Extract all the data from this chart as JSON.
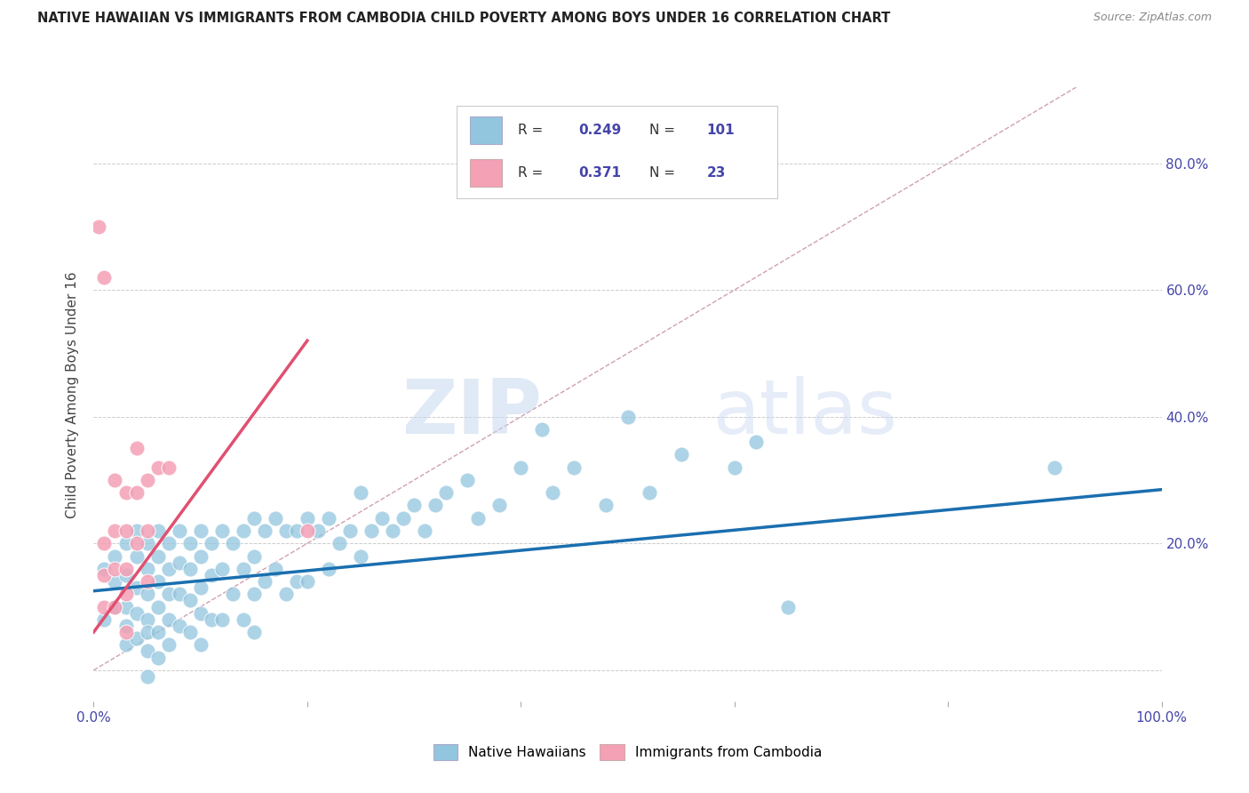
{
  "title": "NATIVE HAWAIIAN VS IMMIGRANTS FROM CAMBODIA CHILD POVERTY AMONG BOYS UNDER 16 CORRELATION CHART",
  "source": "Source: ZipAtlas.com",
  "ylabel": "Child Poverty Among Boys Under 16",
  "xlim": [
    0,
    1.0
  ],
  "ylim": [
    -0.05,
    0.92
  ],
  "yticks": [
    0.0,
    0.2,
    0.4,
    0.6,
    0.8
  ],
  "right_yticklabels": [
    "",
    "20.0%",
    "40.0%",
    "60.0%",
    "80.0%"
  ],
  "watermark_line1": "ZIP",
  "watermark_line2": "atlas",
  "legend_R1": "0.249",
  "legend_N1": "101",
  "legend_R2": "0.371",
  "legend_N2": "23",
  "color_blue": "#92c5de",
  "color_pink": "#f4a0b5",
  "line_blue": "#1a6faf",
  "line_pink": "#e05070",
  "line_diag_color": "#d0a0b0",
  "title_color": "#222222",
  "axis_label_color": "#4444aa",
  "tick_label_color": "#4444aa",
  "blue_scatter_x": [
    0.01,
    0.01,
    0.02,
    0.02,
    0.02,
    0.03,
    0.03,
    0.03,
    0.03,
    0.03,
    0.04,
    0.04,
    0.04,
    0.04,
    0.04,
    0.05,
    0.05,
    0.05,
    0.05,
    0.05,
    0.05,
    0.05,
    0.06,
    0.06,
    0.06,
    0.06,
    0.06,
    0.06,
    0.07,
    0.07,
    0.07,
    0.07,
    0.07,
    0.08,
    0.08,
    0.08,
    0.08,
    0.09,
    0.09,
    0.09,
    0.09,
    0.1,
    0.1,
    0.1,
    0.1,
    0.1,
    0.11,
    0.11,
    0.11,
    0.12,
    0.12,
    0.12,
    0.13,
    0.13,
    0.14,
    0.14,
    0.14,
    0.15,
    0.15,
    0.15,
    0.15,
    0.16,
    0.16,
    0.17,
    0.17,
    0.18,
    0.18,
    0.19,
    0.19,
    0.2,
    0.2,
    0.21,
    0.22,
    0.22,
    0.23,
    0.24,
    0.25,
    0.25,
    0.26,
    0.27,
    0.28,
    0.29,
    0.3,
    0.31,
    0.32,
    0.33,
    0.35,
    0.36,
    0.38,
    0.4,
    0.42,
    0.43,
    0.45,
    0.48,
    0.5,
    0.52,
    0.55,
    0.6,
    0.62,
    0.65,
    0.9
  ],
  "blue_scatter_y": [
    0.16,
    0.08,
    0.18,
    0.14,
    0.1,
    0.2,
    0.15,
    0.1,
    0.07,
    0.04,
    0.22,
    0.18,
    0.13,
    0.09,
    0.05,
    0.2,
    0.16,
    0.12,
    0.08,
    0.06,
    0.03,
    -0.01,
    0.22,
    0.18,
    0.14,
    0.1,
    0.06,
    0.02,
    0.2,
    0.16,
    0.12,
    0.08,
    0.04,
    0.22,
    0.17,
    0.12,
    0.07,
    0.2,
    0.16,
    0.11,
    0.06,
    0.22,
    0.18,
    0.13,
    0.09,
    0.04,
    0.2,
    0.15,
    0.08,
    0.22,
    0.16,
    0.08,
    0.2,
    0.12,
    0.22,
    0.16,
    0.08,
    0.24,
    0.18,
    0.12,
    0.06,
    0.22,
    0.14,
    0.24,
    0.16,
    0.22,
    0.12,
    0.22,
    0.14,
    0.24,
    0.14,
    0.22,
    0.24,
    0.16,
    0.2,
    0.22,
    0.28,
    0.18,
    0.22,
    0.24,
    0.22,
    0.24,
    0.26,
    0.22,
    0.26,
    0.28,
    0.3,
    0.24,
    0.26,
    0.32,
    0.38,
    0.28,
    0.32,
    0.26,
    0.4,
    0.28,
    0.34,
    0.32,
    0.36,
    0.1,
    0.32
  ],
  "pink_scatter_x": [
    0.005,
    0.01,
    0.01,
    0.01,
    0.01,
    0.02,
    0.02,
    0.02,
    0.02,
    0.03,
    0.03,
    0.03,
    0.03,
    0.03,
    0.04,
    0.04,
    0.04,
    0.05,
    0.05,
    0.05,
    0.06,
    0.07,
    0.2
  ],
  "pink_scatter_y": [
    0.7,
    0.62,
    0.2,
    0.15,
    0.1,
    0.3,
    0.22,
    0.16,
    0.1,
    0.28,
    0.22,
    0.16,
    0.12,
    0.06,
    0.35,
    0.28,
    0.2,
    0.3,
    0.22,
    0.14,
    0.32,
    0.32,
    0.22
  ],
  "blue_line_x": [
    0.0,
    1.0
  ],
  "blue_line_y": [
    0.125,
    0.285
  ],
  "pink_line_x": [
    0.0,
    0.2
  ],
  "pink_line_y": [
    0.06,
    0.52
  ],
  "diag_line_x": [
    0.0,
    0.92
  ],
  "diag_line_y": [
    0.0,
    0.92
  ]
}
